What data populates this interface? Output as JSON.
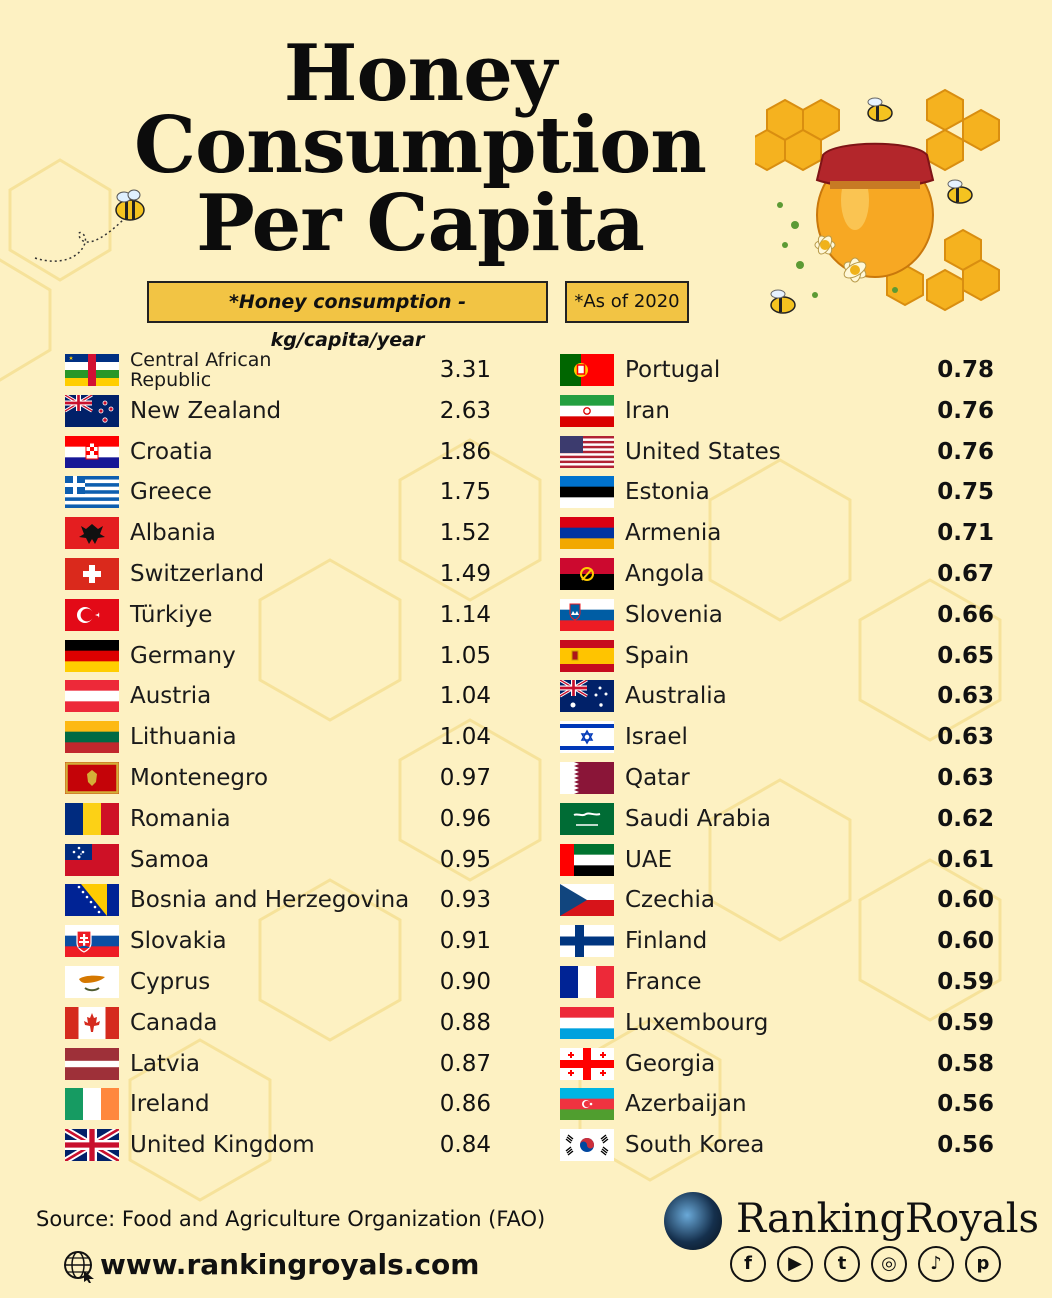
{
  "title": {
    "line1": "Honey",
    "line2": "Consumption",
    "line3": "Per Capita"
  },
  "notes": {
    "unit": "*Honey consumption - kg/capita/year",
    "year": "*As of 2020"
  },
  "left_countries": [
    {
      "name": "Central African\nRepublic",
      "value": "3.31",
      "flag": "central-african-republic"
    },
    {
      "name": "New Zealand",
      "value": "2.63",
      "flag": "new-zealand"
    },
    {
      "name": "Croatia",
      "value": "1.86",
      "flag": "croatia"
    },
    {
      "name": "Greece",
      "value": "1.75",
      "flag": "greece"
    },
    {
      "name": "Albania",
      "value": "1.52",
      "flag": "albania"
    },
    {
      "name": "Switzerland",
      "value": "1.49",
      "flag": "switzerland"
    },
    {
      "name": "Türkiye",
      "value": "1.14",
      "flag": "turkiye"
    },
    {
      "name": "Germany",
      "value": "1.05",
      "flag": "germany"
    },
    {
      "name": "Austria",
      "value": "1.04",
      "flag": "austria"
    },
    {
      "name": "Lithuania",
      "value": "1.04",
      "flag": "lithuania"
    },
    {
      "name": "Montenegro",
      "value": "0.97",
      "flag": "montenegro"
    },
    {
      "name": "Romania",
      "value": "0.96",
      "flag": "romania"
    },
    {
      "name": "Samoa",
      "value": "0.95",
      "flag": "samoa"
    },
    {
      "name": "Bosnia and Herzegovina",
      "value": "0.93",
      "flag": "bosnia-and-herzegovina"
    },
    {
      "name": "Slovakia",
      "value": "0.91",
      "flag": "slovakia"
    },
    {
      "name": "Cyprus",
      "value": "0.90",
      "flag": "cyprus"
    },
    {
      "name": "Canada",
      "value": "0.88",
      "flag": "canada"
    },
    {
      "name": "Latvia",
      "value": "0.87",
      "flag": "latvia"
    },
    {
      "name": "Ireland",
      "value": "0.86",
      "flag": "ireland"
    },
    {
      "name": "United Kingdom",
      "value": "0.84",
      "flag": "united-kingdom"
    }
  ],
  "right_countries": [
    {
      "name": "Portugal",
      "value": "0.78",
      "flag": "portugal"
    },
    {
      "name": "Iran",
      "value": "0.76",
      "flag": "iran"
    },
    {
      "name": "United States",
      "value": "0.76",
      "flag": "united-states"
    },
    {
      "name": "Estonia",
      "value": "0.75",
      "flag": "estonia"
    },
    {
      "name": "Armenia",
      "value": "0.71",
      "flag": "armenia"
    },
    {
      "name": "Angola",
      "value": "0.67",
      "flag": "angola"
    },
    {
      "name": "Slovenia",
      "value": "0.66",
      "flag": "slovenia"
    },
    {
      "name": "Spain",
      "value": "0.65",
      "flag": "spain"
    },
    {
      "name": "Australia",
      "value": "0.63",
      "flag": "australia"
    },
    {
      "name": "Israel",
      "value": "0.63",
      "flag": "israel"
    },
    {
      "name": "Qatar",
      "value": "0.63",
      "flag": "qatar"
    },
    {
      "name": "Saudi Arabia",
      "value": "0.62",
      "flag": "saudi-arabia"
    },
    {
      "name": "UAE",
      "value": "0.61",
      "flag": "uae"
    },
    {
      "name": "Czechia",
      "value": "0.60",
      "flag": "czechia"
    },
    {
      "name": "Finland",
      "value": "0.60",
      "flag": "finland"
    },
    {
      "name": "France",
      "value": "0.59",
      "flag": "france"
    },
    {
      "name": "Luxembourg",
      "value": "0.59",
      "flag": "luxembourg"
    },
    {
      "name": "Georgia",
      "value": "0.58",
      "flag": "georgia"
    },
    {
      "name": "Azerbaijan",
      "value": "0.56",
      "flag": "azerbaijan"
    },
    {
      "name": "South Korea",
      "value": "0.56",
      "flag": "south-korea"
    }
  ],
  "footer": {
    "source": "Source: Food and Agriculture Organization (FAO)",
    "website": "www.rankingroyals.com",
    "brand": "RankingRoyals",
    "social_icons": [
      "facebook-icon",
      "youtube-icon",
      "twitter-icon",
      "instagram-icon",
      "tiktok-icon",
      "pinterest-icon"
    ]
  },
  "colors": {
    "background": "#fdf1c2",
    "note_fill": "#f2c444",
    "honey": "#f5b21f"
  }
}
